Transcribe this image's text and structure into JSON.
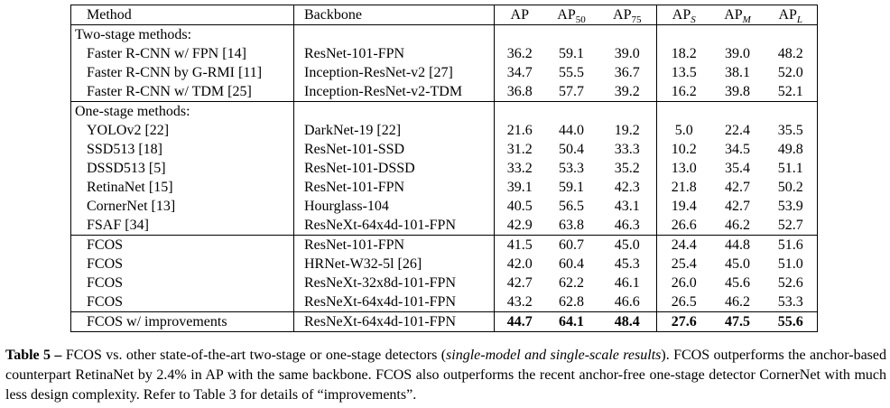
{
  "table": {
    "header": [
      {
        "text": "Method"
      },
      {
        "text": "Backbone"
      },
      {
        "text": "AP"
      },
      {
        "text": "AP",
        "sub": "50"
      },
      {
        "text": "AP",
        "sub": "75"
      },
      {
        "text": "AP",
        "sub": "S"
      },
      {
        "text": "AP",
        "sub": "M"
      },
      {
        "text": "AP",
        "sub": "L"
      }
    ],
    "groups": [
      {
        "label": "Two-stage methods:",
        "rows": [
          {
            "method": "Faster R-CNN w/ FPN [14]",
            "backbone": "ResNet-101-FPN",
            "values": [
              "36.2",
              "59.1",
              "39.0",
              "18.2",
              "39.0",
              "48.2"
            ]
          },
          {
            "method": "Faster R-CNN by G-RMI [11]",
            "backbone": "Inception-ResNet-v2 [27]",
            "values": [
              "34.7",
              "55.5",
              "36.7",
              "13.5",
              "38.1",
              "52.0"
            ]
          },
          {
            "method": "Faster R-CNN w/ TDM [25]",
            "backbone": "Inception-ResNet-v2-TDM",
            "values": [
              "36.8",
              "57.7",
              "39.2",
              "16.2",
              "39.8",
              "52.1"
            ]
          }
        ]
      },
      {
        "label": "One-stage methods:",
        "rows": [
          {
            "method": "YOLOv2 [22]",
            "backbone": "DarkNet-19 [22]",
            "values": [
              "21.6",
              "44.0",
              "19.2",
              "5.0",
              "22.4",
              "35.5"
            ]
          },
          {
            "method": "SSD513 [18]",
            "backbone": "ResNet-101-SSD",
            "values": [
              "31.2",
              "50.4",
              "33.3",
              "10.2",
              "34.5",
              "49.8"
            ]
          },
          {
            "method": "DSSD513 [5]",
            "backbone": "ResNet-101-DSSD",
            "values": [
              "33.2",
              "53.3",
              "35.2",
              "13.0",
              "35.4",
              "51.1"
            ]
          },
          {
            "method": "RetinaNet [15]",
            "backbone": "ResNet-101-FPN",
            "values": [
              "39.1",
              "59.1",
              "42.3",
              "21.8",
              "42.7",
              "50.2"
            ]
          },
          {
            "method": "CornerNet [13]",
            "backbone": "Hourglass-104",
            "values": [
              "40.5",
              "56.5",
              "43.1",
              "19.4",
              "42.7",
              "53.9"
            ]
          },
          {
            "method": "FSAF [34]",
            "backbone": "ResNeXt-64x4d-101-FPN",
            "values": [
              "42.9",
              "63.8",
              "46.3",
              "26.6",
              "46.2",
              "52.7"
            ]
          }
        ]
      },
      {
        "rows": [
          {
            "method": "FCOS",
            "backbone": "ResNet-101-FPN",
            "values": [
              "41.5",
              "60.7",
              "45.0",
              "24.4",
              "44.8",
              "51.6"
            ]
          },
          {
            "method": "FCOS",
            "backbone": "HRNet-W32-5l [26]",
            "values": [
              "42.0",
              "60.4",
              "45.3",
              "25.4",
              "45.0",
              "51.0"
            ]
          },
          {
            "method": "FCOS",
            "backbone": "ResNeXt-32x8d-101-FPN",
            "values": [
              "42.7",
              "62.2",
              "46.1",
              "26.0",
              "45.6",
              "52.6"
            ]
          },
          {
            "method": "FCOS",
            "backbone": "ResNeXt-64x4d-101-FPN",
            "values": [
              "43.2",
              "62.8",
              "46.6",
              "26.5",
              "46.2",
              "53.3"
            ]
          }
        ]
      },
      {
        "bold": true,
        "rows": [
          {
            "method": "FCOS w/ improvements",
            "backbone": "ResNeXt-64x4d-101-FPN",
            "values": [
              "44.7",
              "64.1",
              "48.4",
              "27.6",
              "47.5",
              "55.6"
            ]
          }
        ]
      }
    ]
  },
  "caption": {
    "label": "Table 5 –",
    "parts": [
      "FCOS vs. other state-of-the-art two-stage or one-stage detectors (",
      "single-model and single-scale results",
      "). FCOS outperforms the anchor-based counterpart RetinaNet by 2.4% in AP with the same backbone. FCOS also outperforms the recent anchor-free one-stage detector CornerNet with much less design complexity. Refer to Table 3 for details of “improvements”."
    ]
  }
}
